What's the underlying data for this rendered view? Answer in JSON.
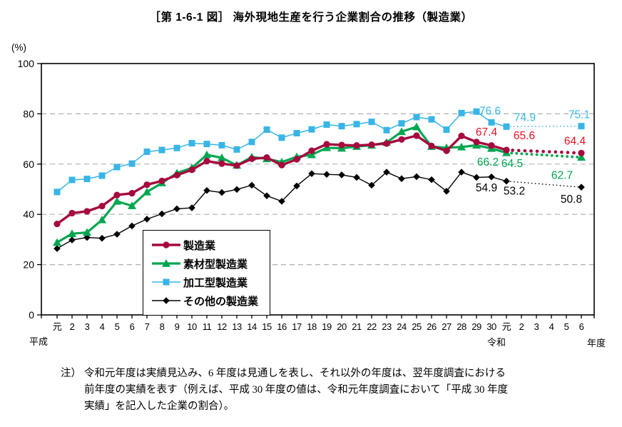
{
  "chart_data": {
    "type": "line",
    "title": "［第 1-6-1 図］ 海外現地生産を行う企業割合の推移（製造業）",
    "y_axis": {
      "unit": "(%)",
      "ticks": [
        0,
        20,
        40,
        60,
        80,
        100
      ],
      "range": [
        0,
        100
      ],
      "gridlines": "dashed"
    },
    "x_axis": {
      "era_heisei": "平成",
      "era_reiwa": "令和",
      "unit": "年度",
      "tick_labels": [
        "元",
        "2",
        "3",
        "4",
        "5",
        "6",
        "7",
        "8",
        "9",
        "10",
        "11",
        "12",
        "13",
        "14",
        "15",
        "16",
        "17",
        "18",
        "19",
        "20",
        "21",
        "22",
        "23",
        "24",
        "25",
        "26",
        "27",
        "28",
        "29",
        "30",
        "元",
        "2",
        "3",
        "4",
        "5",
        "6"
      ]
    },
    "point_years": [
      "平成元",
      "平成2",
      "平成3",
      "平成4",
      "平成5",
      "平成6",
      "平成7",
      "平成8",
      "平成9",
      "平成10",
      "平成11",
      "平成12",
      "平成13",
      "平成14",
      "平成15",
      "平成16",
      "平成17",
      "平成18",
      "平成19",
      "平成20",
      "平成21",
      "平成22",
      "平成23",
      "平成24",
      "平成25",
      "平成26",
      "平成27",
      "平成28",
      "平成29",
      "平成30",
      "令和元",
      "令和6"
    ],
    "series": [
      {
        "key": "manufacturing",
        "name": "製造業",
        "marker": "circle",
        "color": "#a6093d",
        "label_color": "#e81123",
        "values": [
          36.2,
          40.5,
          41.2,
          43.3,
          47.7,
          48.4,
          51.8,
          53.3,
          55.6,
          57.7,
          61.2,
          60.2,
          59.4,
          62.1,
          62.6,
          59.6,
          61.9,
          65.3,
          67.9,
          67.6,
          67.4,
          67.7,
          68.2,
          69.8,
          71.3,
          67.2,
          65.3,
          71.2,
          68.8,
          67.4,
          65.6,
          64.4
        ]
      },
      {
        "key": "materials",
        "name": "素材型製造業",
        "marker": "triangle",
        "color": "#00a650",
        "label_color": "#00a650",
        "values": [
          28.8,
          32.3,
          32.8,
          37.8,
          45.2,
          43.4,
          48.9,
          52.5,
          56.4,
          58.5,
          63.7,
          62.5,
          59.5,
          62.8,
          62.1,
          60.8,
          62.9,
          63.7,
          66.5,
          66.3,
          67.0,
          67.5,
          68.6,
          72.9,
          74.8,
          67.0,
          66.5,
          66.8,
          67.5,
          66.2,
          64.5,
          62.7
        ]
      },
      {
        "key": "processing",
        "name": "加工型製造業",
        "marker": "square",
        "color": "#38b5e6",
        "label_color": "#38b5e6",
        "values": [
          48.9,
          53.7,
          54.1,
          55.4,
          58.8,
          60.2,
          64.9,
          65.6,
          66.4,
          68.3,
          68.0,
          67.5,
          65.8,
          68.8,
          73.7,
          70.5,
          72.3,
          73.8,
          75.7,
          75.1,
          75.9,
          76.8,
          73.5,
          76.2,
          78.7,
          77.8,
          73.7,
          80.3,
          80.9,
          76.6,
          74.9,
          75.1
        ]
      },
      {
        "key": "other",
        "name": "その他の製造業",
        "marker": "diamond",
        "color": "#000000",
        "label_color": "#000000",
        "values": [
          26.4,
          29.8,
          30.8,
          30.5,
          32.1,
          35.4,
          38.1,
          40.2,
          42.2,
          42.6,
          49.5,
          48.7,
          49.9,
          51.6,
          47.4,
          45.2,
          51.3,
          56.2,
          55.9,
          55.7,
          54.7,
          51.6,
          56.8,
          54.2,
          55.0,
          53.8,
          49.2,
          56.8,
          54.7,
          54.9,
          53.2,
          50.8
        ]
      }
    ],
    "annotations": [
      {
        "series": "processing",
        "point": "h30",
        "text": "76.6"
      },
      {
        "series": "processing",
        "point": "r1",
        "text": "74.9"
      },
      {
        "series": "processing",
        "point": "r6",
        "text": "75.1"
      },
      {
        "series": "manufacturing",
        "point": "h30",
        "text": "67.4"
      },
      {
        "series": "manufacturing",
        "point": "r1",
        "text": "65.6"
      },
      {
        "series": "manufacturing",
        "point": "r6",
        "text": "64.4"
      },
      {
        "series": "materials",
        "point": "h30",
        "text": "66.2"
      },
      {
        "series": "materials",
        "point": "r1",
        "text": "64.5"
      },
      {
        "series": "materials",
        "point": "r6",
        "text": "62.7"
      },
      {
        "series": "other",
        "point": "h30",
        "text": "54.9"
      },
      {
        "series": "other",
        "point": "r1",
        "text": "53.2"
      },
      {
        "series": "other",
        "point": "r6",
        "text": "50.8"
      }
    ],
    "legend_order": [
      "manufacturing",
      "materials",
      "processing",
      "other"
    ]
  },
  "note": {
    "prefix": "注）",
    "lines": [
      "令和元年度は実績見込み、6 年度は見通しを表し、それ以外の年度は、翌年度調査における",
      "前年度の実績を表す（例えば、平成 30 年度の値は、令和元年度調査において「平成 30 年度",
      "実績」を記入した企業の割合）。"
    ]
  }
}
